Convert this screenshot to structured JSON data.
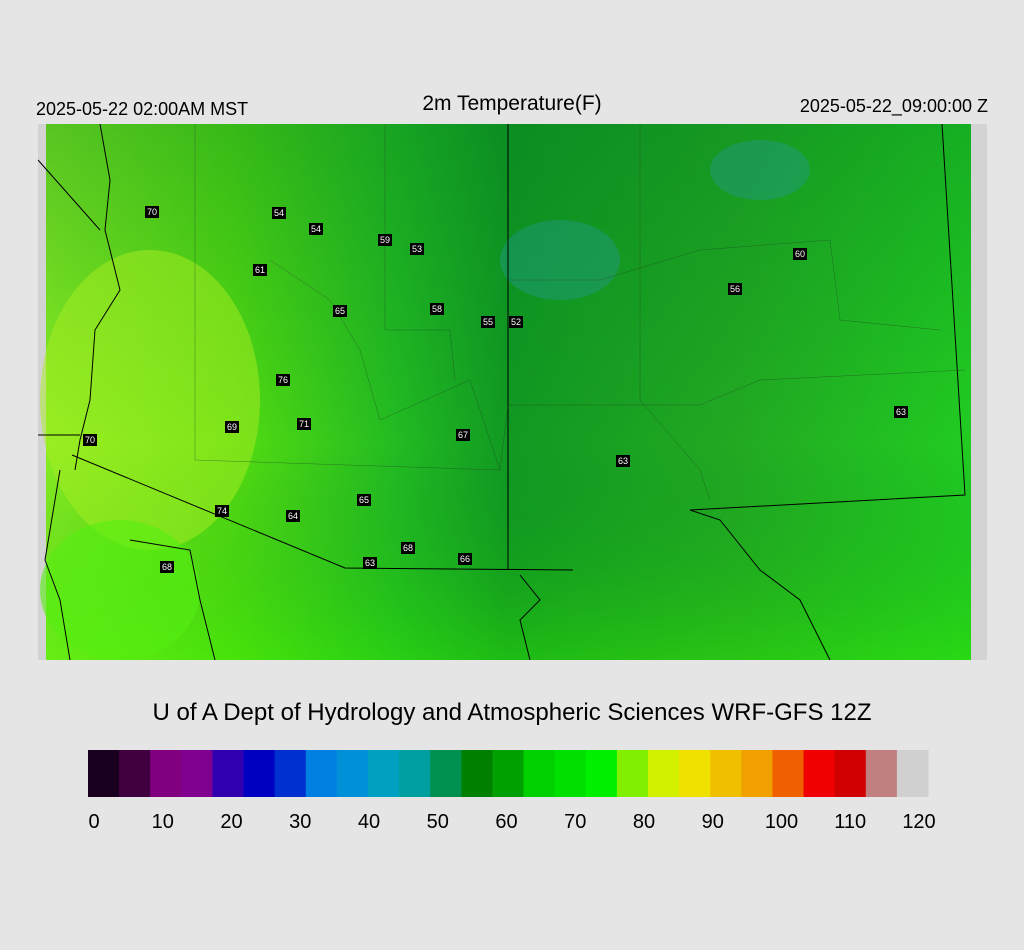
{
  "header": {
    "left": "2025-05-22 02:00AM MST",
    "title": "2m Temperature(F)",
    "right": "2025-05-22_09:00:00 Z"
  },
  "stations": [
    70,
    54,
    54,
    59,
    53,
    61,
    65,
    58,
    55,
    52,
    60,
    56,
    76,
    69,
    71,
    67,
    70,
    63,
    63,
    65,
    74,
    64,
    68,
    66,
    63,
    68
  ],
  "footer": "U of A Dept of Hydrology and Atmospheric Sciences WRF-GFS 12Z",
  "colorbar": {
    "ticks": [
      0,
      10,
      20,
      30,
      40,
      50,
      60,
      70,
      80,
      90,
      100,
      110,
      120
    ],
    "colors": [
      "#1a0020",
      "#400040",
      "#800080",
      "#800090",
      "#3000b0",
      "#0000c0",
      "#0030d0",
      "#0080e0",
      "#0090d8",
      "#00a0c0",
      "#00a0a0",
      "#009050",
      "#008000",
      "#00a000",
      "#00d000",
      "#00e000",
      "#00f000",
      "#80f000",
      "#d0f000",
      "#f0e000",
      "#f0c000",
      "#f0a000",
      "#f06000",
      "#f00000",
      "#d00000",
      "#c08080",
      "#d0d0d0"
    ]
  }
}
